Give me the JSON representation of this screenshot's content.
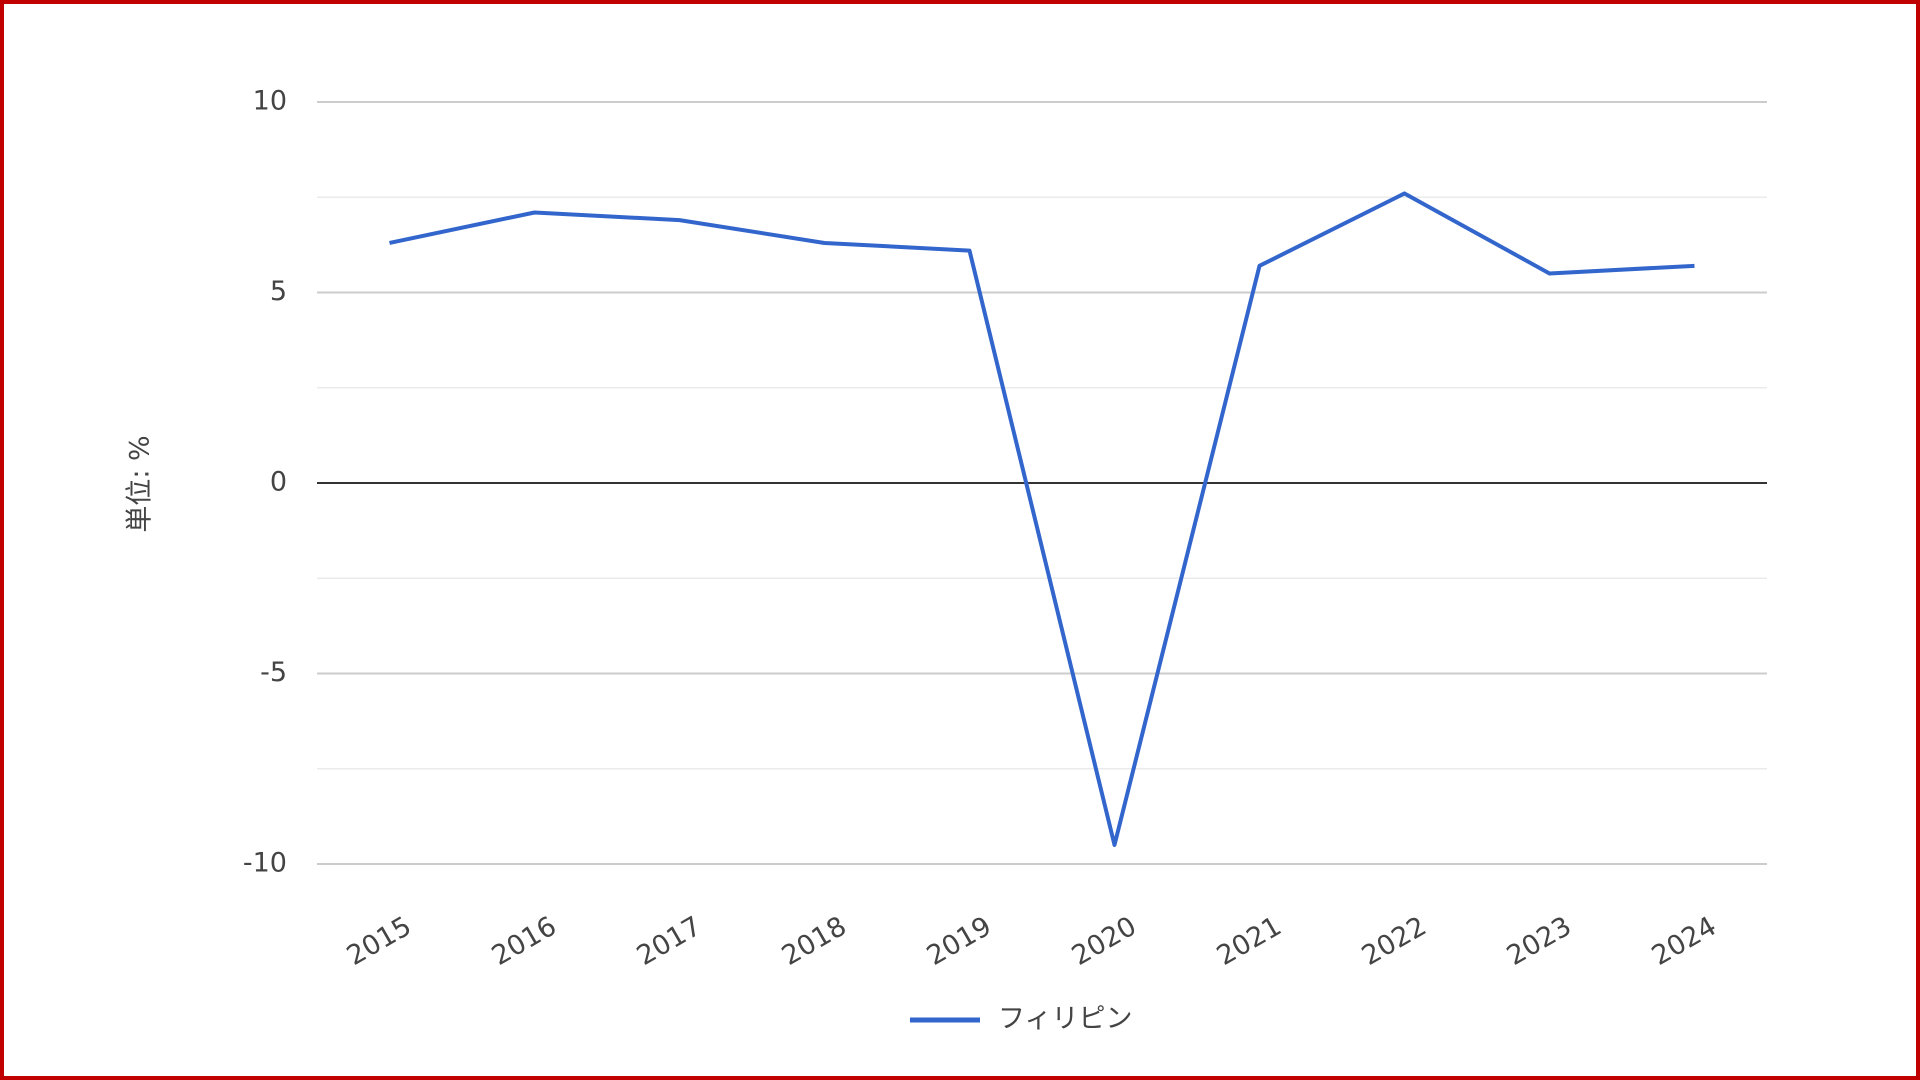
{
  "chart_data": {
    "type": "line",
    "y_label": "単位: %",
    "categories": [
      "2015",
      "2016",
      "2017",
      "2018",
      "2019",
      "2020",
      "2021",
      "2022",
      "2023",
      "2024"
    ],
    "series": [
      {
        "name": "フィリピン",
        "color": "#3366cc",
        "values": [
          6.3,
          7.1,
          6.9,
          6.3,
          6.1,
          -9.5,
          5.7,
          7.6,
          5.5,
          5.7
        ]
      }
    ],
    "ylim": [
      -10,
      10
    ],
    "yticks": [
      -10,
      -5,
      0,
      5,
      10
    ],
    "minor_yticks": [
      -7.5,
      -2.5,
      2.5,
      7.5
    ],
    "grid": true,
    "legend": "bottom",
    "border_color": "#c00000"
  }
}
